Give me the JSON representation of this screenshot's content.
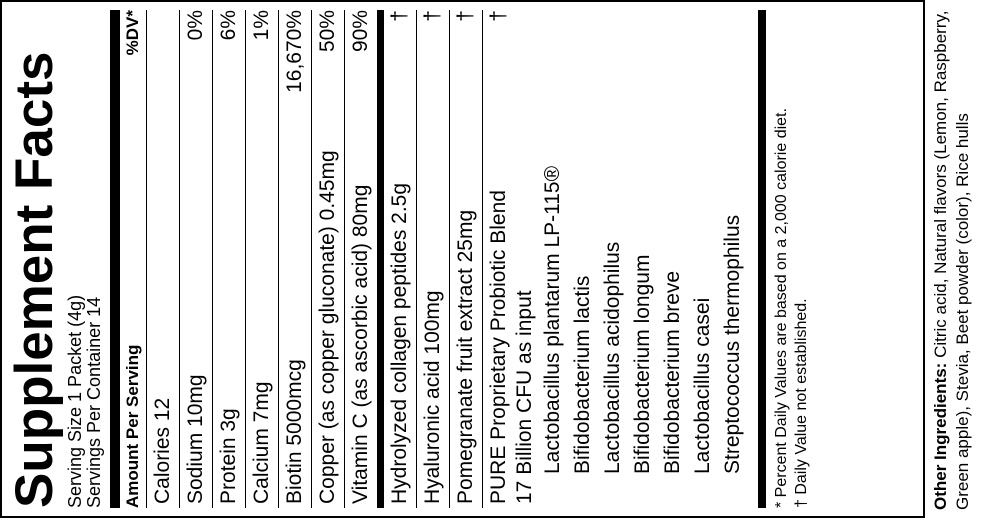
{
  "title": "Supplement Facts",
  "serving": [
    "Serving Size 1 Packet (4g)",
    "Servings Per Container 14"
  ],
  "header": {
    "amount": "Amount Per Serving",
    "dv": "%DV*"
  },
  "rows": [
    {
      "name": "Calories 12"
    },
    {
      "name": "Sodium 10mg",
      "dv": "0%"
    },
    {
      "name": "Protein 3g",
      "dv": "6%"
    },
    {
      "name": "Calcium 7mg",
      "dv": "1%"
    },
    {
      "name": "Biotin 5000mcg",
      "dv": "16,670%"
    },
    {
      "name": "Copper (as copper gluconate) 0.45mg",
      "dv": "50%"
    },
    {
      "name": "Vitamin C (as ascorbic acid) 80mg",
      "dv": "90%"
    }
  ],
  "rows2": [
    {
      "name": "Hydrolyzed collagen peptides 2.5g",
      "dv": "†"
    },
    {
      "name": "Hyaluronic acid 100mg",
      "dv": "†"
    },
    {
      "name": "Pomegranate fruit extract 25mg",
      "dv": "†"
    }
  ],
  "blend": {
    "name": "PURE Proprietary Probiotic Blend",
    "dv": "†",
    "cfu": "17 Billion CFU as input",
    "strains": [
      "Lactobacillus plantarum LP-115®",
      "Bifidobacterium lactis",
      "Lactobacillus acidophilus",
      "Bifidobacterium longum",
      "Bifidobacterium breve",
      "Lactobacillus casei",
      "Streptococcus thermophilus"
    ]
  },
  "footnotes": [
    "* Percent Daily Values are based on a 2,000 calorie diet.",
    "† Daily Value not established."
  ],
  "other": {
    "label": "Other Ingredients:",
    "text": "Citric acid, Natural flavors (Lemon, Raspberry, Green apple), Stevia, Beet powder (color), Rice hulls"
  }
}
